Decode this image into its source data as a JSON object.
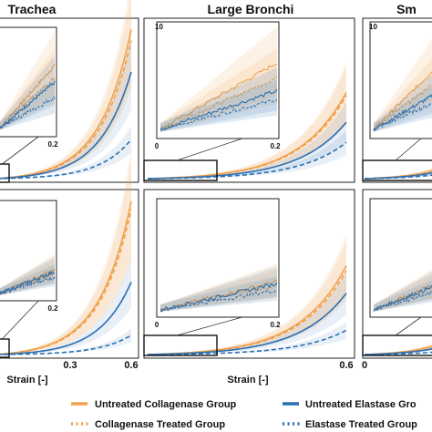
{
  "chart_data": {
    "type": "line",
    "panel_titles": [
      "Trachea",
      "Large Bronchi",
      "Sm"
    ],
    "x_axis": {
      "label": "Strain [-]",
      "ticks": [
        {
          "text": "0.3",
          "value": 0.3
        },
        {
          "text": "0.6",
          "value": 0.6
        },
        {
          "text": "0",
          "value": 0
        }
      ],
      "xlim": [
        0,
        0.6
      ]
    },
    "inset": {
      "xlim": [
        0,
        0.2
      ],
      "x_ticks": [
        {
          "text": "0",
          "value": 0
        },
        {
          "text": "0.2",
          "value": 0.2
        }
      ],
      "y_top_label": "10",
      "ylim": [
        0,
        10
      ]
    },
    "legend": [
      {
        "label": "Untreated Collagenase Group",
        "color": "#f0a04b",
        "dash": "solid"
      },
      {
        "label": "Collagenase Treated Group",
        "color": "#f0a04b",
        "dash": "dotted"
      },
      {
        "label": "Untreated Elastase Gro",
        "color": "#2a6fb3",
        "dash": "solid"
      },
      {
        "label": "Elastase Treated Group",
        "color": "#2a6fb3",
        "dash": "dotted"
      }
    ],
    "panels": [
      {
        "name": "Trachea",
        "row": 0,
        "col": 0,
        "series_rel": [
          0.95,
          0.88,
          0.68,
          0.25
        ]
      },
      {
        "name": "Large Bronchi",
        "row": 0,
        "col": 1,
        "series_rel": [
          0.55,
          0.53,
          0.36,
          0.23
        ]
      },
      {
        "name": "Sm",
        "row": 0,
        "col": 2,
        "series_rel": [
          0.55,
          0.53,
          0.4,
          0.25
        ]
      },
      {
        "name": "Trachea",
        "row": 1,
        "col": 0,
        "series_rel": [
          0.95,
          0.9,
          0.45,
          0.12
        ]
      },
      {
        "name": "Large Bronchi",
        "row": 1,
        "col": 1,
        "series_rel": [
          0.55,
          0.52,
          0.38,
          0.15
        ]
      },
      {
        "name": "Sm",
        "row": 1,
        "col": 2,
        "series_rel": [
          0.55,
          0.52,
          0.38,
          0.15
        ]
      }
    ],
    "grid": false
  }
}
